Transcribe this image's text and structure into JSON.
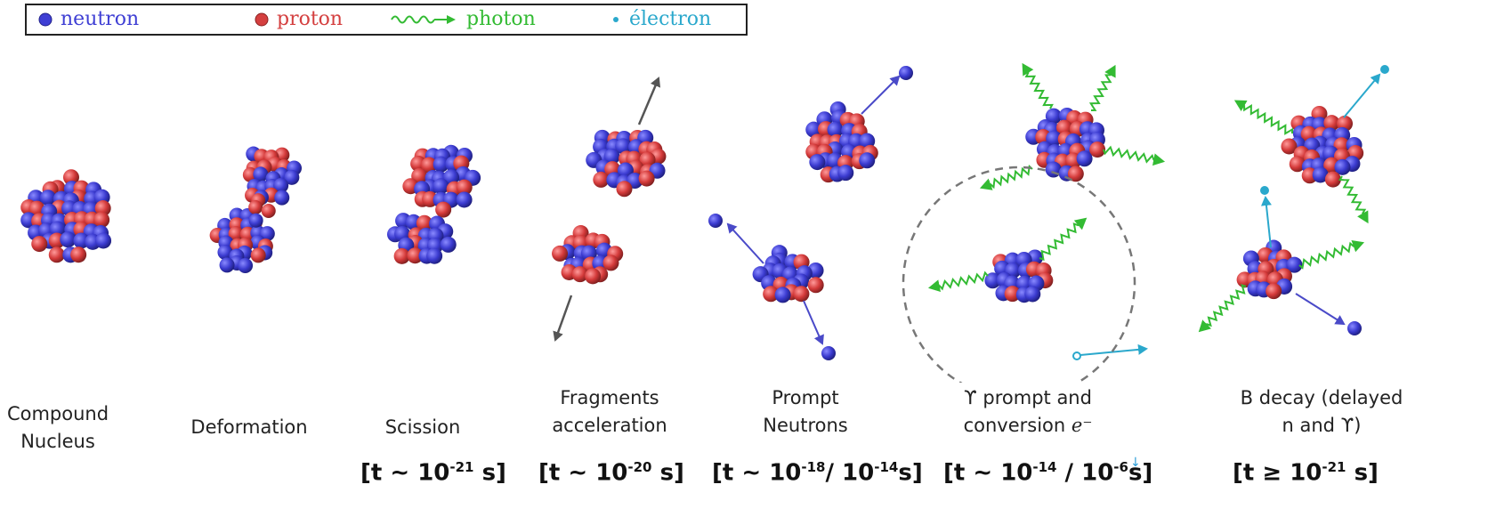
{
  "legend": [
    {
      "symbol": "neutron",
      "label": "neutron",
      "color": "#3f3fd4"
    },
    {
      "symbol": "proton",
      "label": "proton",
      "color": "#d43f3f"
    },
    {
      "symbol": "photon",
      "label": "photon",
      "color": "#33bb33"
    },
    {
      "symbol": "electron",
      "label": "électron",
      "color": "#2aa8cc"
    }
  ],
  "stages": [
    {
      "id": "compound",
      "line1": "Compound",
      "line2": "Nucleus"
    },
    {
      "id": "deformation",
      "line1": "Deformation",
      "line2": ""
    },
    {
      "id": "scission",
      "line1": "Scission",
      "line2": "",
      "time_pre": "[t ~ 10",
      "time_exp": "-21",
      "time_post": "s]"
    },
    {
      "id": "acceleration",
      "line1": "Fragments",
      "line2": "acceleration",
      "time_pre": "[t ~ 10",
      "time_exp": "-20",
      "time_post": "s]"
    },
    {
      "id": "prompt-neutrons",
      "line1": "Prompt",
      "line2": "Neutrons",
      "time_pre": "[t ~ 10",
      "time_exp": "-18",
      "time_mid": "/ 10",
      "time_exp2": "-14",
      "time_post": "s]"
    },
    {
      "id": "gamma-prompt",
      "line1": "ϒ prompt and",
      "line2": "conversion ",
      "line2_math": "e⁻",
      "time_pre": "[t ~ 10",
      "time_exp": "-14",
      "time_mid": " / 10",
      "time_exp2": "-6",
      "time_post": "s]"
    },
    {
      "id": "beta-decay",
      "line1": "Β decay (delayed",
      "line2": "n and ϒ)",
      "time_pre": "[t ≥ 10",
      "time_exp": "-21",
      "time_post": "s]"
    }
  ],
  "colors": {
    "neutron": "#3f3fd4",
    "proton": "#d43f3f",
    "photon": "#33bb33",
    "electron": "#2aa8cc",
    "arrow": "#555555",
    "neutron_arrow": "#4a4ac8",
    "dash": "#777777"
  }
}
